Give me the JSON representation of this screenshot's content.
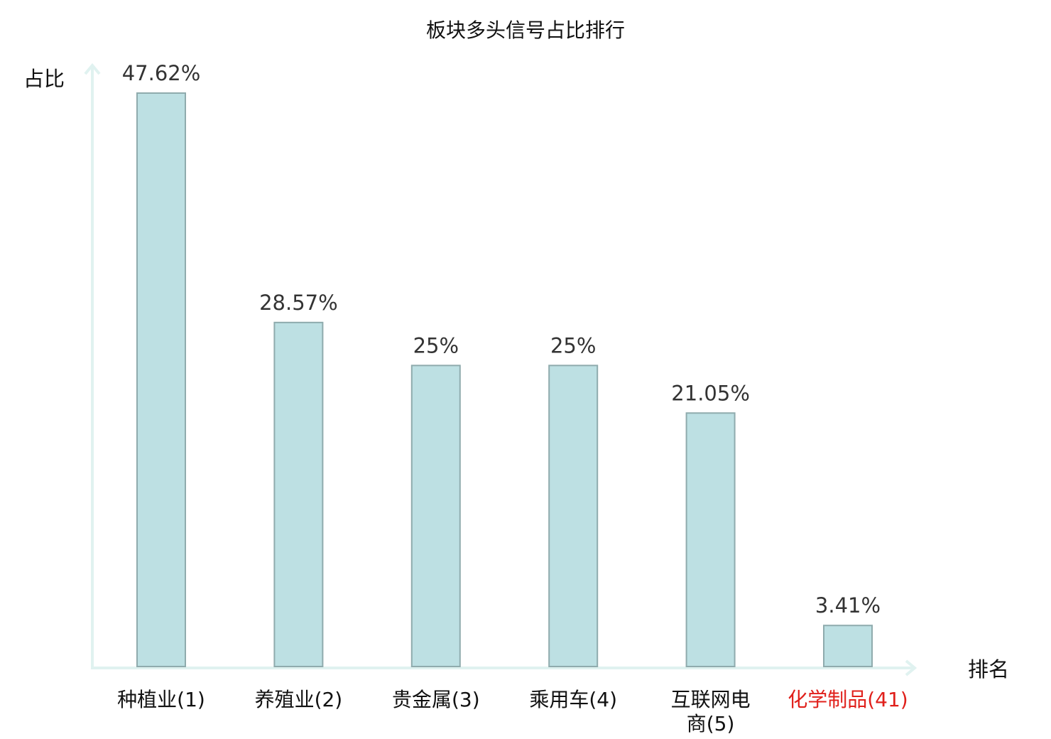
{
  "chart_data": {
    "type": "bar",
    "title": "板块多头信号占比排行",
    "ylabel": "占比",
    "xlabel": "排名",
    "ylim": [
      0,
      50
    ],
    "grid": false,
    "categories": [
      {
        "name": "种植业",
        "rank": "(1)",
        "lines": [
          "种植业(1)"
        ],
        "value": 47.62,
        "label": "47.62%",
        "highlight": false
      },
      {
        "name": "养殖业",
        "rank": "(2)",
        "lines": [
          "养殖业(2)"
        ],
        "value": 28.57,
        "label": "28.57%",
        "highlight": false
      },
      {
        "name": "贵金属",
        "rank": "(3)",
        "lines": [
          "贵金属(3)"
        ],
        "value": 25,
        "label": "25%",
        "highlight": false
      },
      {
        "name": "乘用车",
        "rank": "(4)",
        "lines": [
          "乘用车(4)"
        ],
        "value": 25,
        "label": "25%",
        "highlight": false
      },
      {
        "name": "互联网电商",
        "rank": "(5)",
        "lines": [
          "互联网电",
          "商(5)"
        ],
        "value": 21.05,
        "label": "21.05%",
        "highlight": false
      },
      {
        "name": "化学制品",
        "rank": "(41)",
        "lines": [
          "化学制品(41)"
        ],
        "value": 3.41,
        "label": "3.41%",
        "highlight": true
      }
    ],
    "colors": {
      "bar_fill": "#bde0e3",
      "bar_stroke": "#8fabad",
      "axis": "#e0f2f0",
      "text": "#333333",
      "highlight": "#e0201b"
    }
  }
}
